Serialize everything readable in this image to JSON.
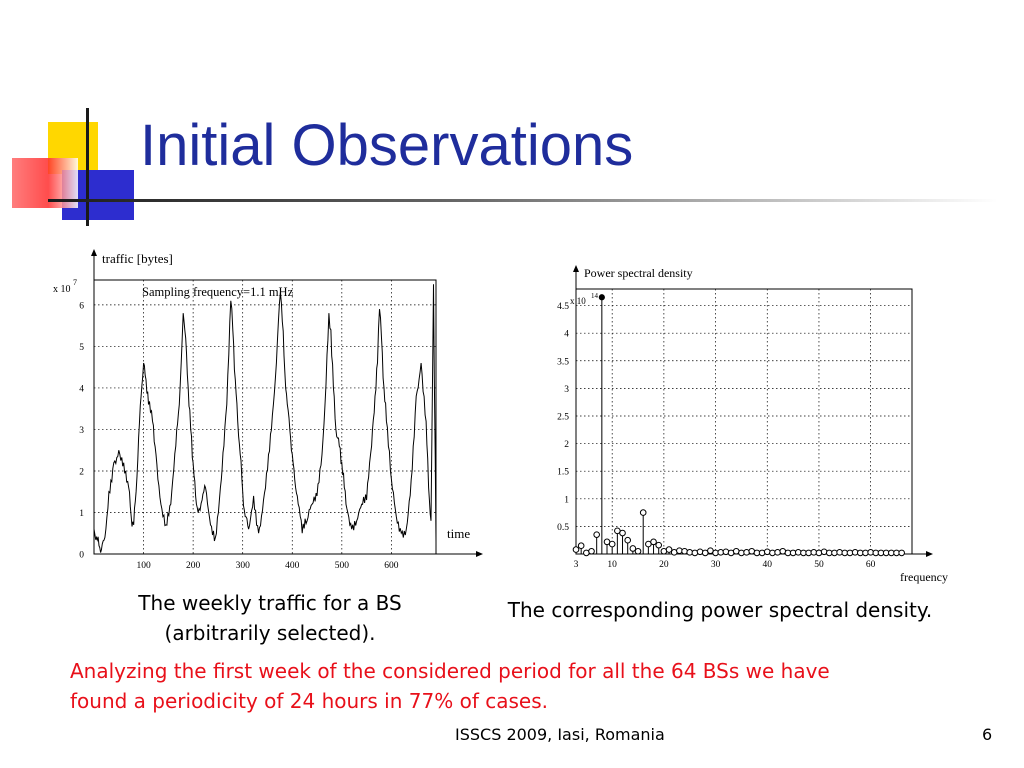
{
  "slide": {
    "title": "Initial Observations",
    "caption_left_line1": "The weekly traffic for a BS",
    "caption_left_line2": "(arbitrarily selected).",
    "caption_right": "The corresponding power spectral density.",
    "note_line1": "Analyzing the first week of the considered period for all the 64 BSs we have",
    "note_line2": "found a periodicity of 24 hours in 77% of cases.",
    "footer": "ISSCS 2009, Iasi, Romania",
    "page_number": "6"
  },
  "colors": {
    "title": "#1f2d9c",
    "note": "#e8101a",
    "accent_yellow": "#ffd700",
    "accent_blue": "#3333cc",
    "accent_red": "#ff3333"
  },
  "chart_data": [
    {
      "type": "line",
      "ylabel": "traffic [bytes]",
      "xlabel": "time",
      "annotation": "Sampling frequency=1.1 mHz",
      "y_exponent_label": "x 10",
      "y_exponent": "7",
      "xlim": [
        0,
        690
      ],
      "ylim": [
        0,
        6.6
      ],
      "x_ticks": [
        "100",
        "200",
        "300",
        "400",
        "500",
        "600"
      ],
      "y_ticks": [
        "0",
        "1",
        "2",
        "3",
        "4",
        "5",
        "6"
      ],
      "grid": true,
      "x": [
        0,
        5,
        10,
        15,
        22,
        30,
        40,
        50,
        60,
        70,
        75,
        80,
        85,
        90,
        95,
        100,
        105,
        110,
        118,
        125,
        135,
        145,
        155,
        165,
        172,
        176,
        180,
        185,
        190,
        195,
        200,
        205,
        210,
        218,
        225,
        235,
        245,
        255,
        262,
        268,
        272,
        276,
        280,
        285,
        290,
        295,
        300,
        305,
        312,
        322,
        332,
        342,
        352,
        362,
        368,
        372,
        376,
        380,
        385,
        390,
        395,
        400,
        405,
        412,
        420,
        430,
        440,
        450,
        460,
        466,
        470,
        474,
        478,
        483,
        488,
        495,
        500,
        505,
        512,
        520,
        530,
        540,
        550,
        560,
        567,
        572,
        576,
        580,
        585,
        590,
        600,
        610,
        620,
        630,
        640,
        650,
        660,
        670,
        675,
        680,
        685,
        690
      ],
      "y": [
        0.6,
        0.4,
        0.2,
        0.1,
        0.4,
        1.5,
        2.2,
        2.5,
        2.2,
        1.6,
        0.9,
        0.7,
        1.5,
        2.8,
        3.8,
        4.6,
        4.2,
        3.6,
        3.2,
        2.4,
        1.2,
        0.7,
        1.2,
        2.6,
        3.6,
        4.6,
        5.8,
        5.2,
        4.0,
        3.0,
        2.2,
        1.4,
        1.0,
        1.3,
        1.6,
        0.7,
        0.4,
        1.6,
        2.6,
        3.6,
        4.8,
        6.1,
        5.4,
        4.2,
        3.2,
        2.4,
        1.5,
        0.9,
        0.6,
        1.4,
        0.5,
        1.3,
        2.4,
        3.6,
        4.6,
        5.6,
        6.3,
        5.6,
        4.4,
        3.6,
        3.0,
        2.4,
        1.8,
        1.2,
        0.5,
        0.8,
        1.2,
        1.4,
        2.4,
        3.6,
        4.8,
        5.8,
        5.4,
        4.0,
        3.0,
        2.6,
        2.2,
        1.6,
        1.0,
        0.6,
        0.8,
        1.2,
        1.3,
        2.6,
        3.8,
        4.6,
        5.9,
        5.2,
        4.0,
        3.2,
        1.8,
        0.9,
        0.5,
        0.6,
        1.8,
        3.8,
        4.6,
        3.2,
        1.6,
        0.8,
        6.5,
        0.3
      ]
    },
    {
      "type": "scatter",
      "title": "Power spectral density",
      "xlabel": "frequency",
      "y_exponent_label": "x 10",
      "y_exponent": "14",
      "xlim": [
        3,
        68
      ],
      "ylim": [
        0,
        4.8
      ],
      "x_ticks": [
        "3",
        "10",
        "20",
        "30",
        "40",
        "50",
        "60"
      ],
      "y_ticks": [
        "0.5",
        "1",
        "1.5",
        "2",
        "2.5",
        "3",
        "3.5",
        "4",
        "4.5"
      ],
      "grid": true,
      "x": [
        3,
        4,
        5,
        6,
        7,
        8,
        9,
        10,
        11,
        12,
        13,
        14,
        15,
        16,
        17,
        18,
        19,
        20,
        21,
        22,
        23,
        24,
        25,
        26,
        27,
        28,
        29,
        30,
        31,
        32,
        33,
        34,
        35,
        36,
        37,
        38,
        39,
        40,
        41,
        42,
        43,
        44,
        45,
        46,
        47,
        48,
        49,
        50,
        51,
        52,
        53,
        54,
        55,
        56,
        57,
        58,
        59,
        60,
        61,
        62,
        63,
        64,
        65,
        66
      ],
      "y": [
        0.08,
        0.15,
        0.02,
        0.05,
        0.35,
        4.65,
        0.22,
        0.18,
        0.42,
        0.38,
        0.25,
        0.1,
        0.05,
        0.75,
        0.18,
        0.22,
        0.16,
        0.05,
        0.08,
        0.03,
        0.06,
        0.05,
        0.03,
        0.02,
        0.04,
        0.02,
        0.06,
        0.02,
        0.03,
        0.04,
        0.02,
        0.05,
        0.02,
        0.03,
        0.05,
        0.02,
        0.02,
        0.04,
        0.02,
        0.03,
        0.05,
        0.02,
        0.02,
        0.03,
        0.02,
        0.02,
        0.03,
        0.02,
        0.04,
        0.02,
        0.02,
        0.03,
        0.02,
        0.02,
        0.03,
        0.02,
        0.02,
        0.03,
        0.02,
        0.02,
        0.02,
        0.02,
        0.02,
        0.02
      ]
    }
  ]
}
